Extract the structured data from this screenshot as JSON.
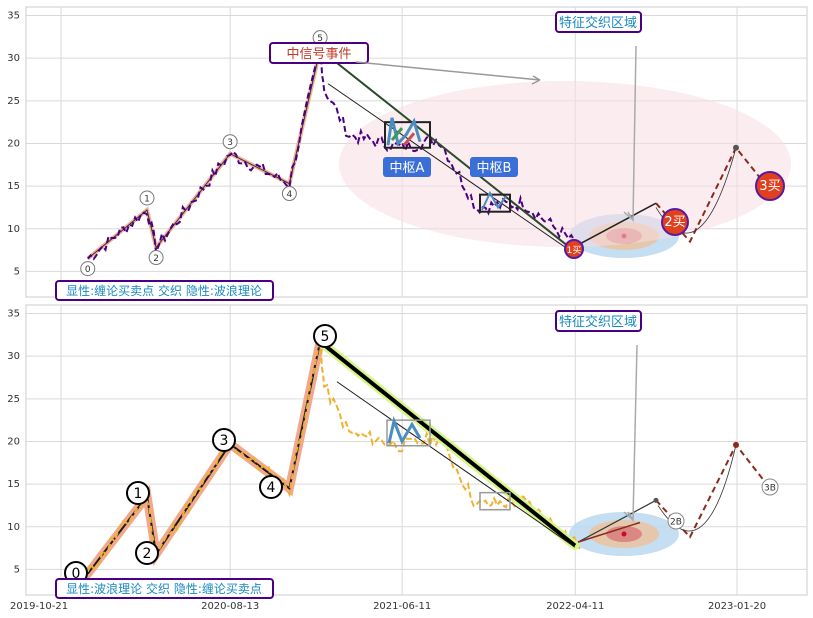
{
  "chart_data": [
    {
      "type": "line",
      "panel": "top",
      "ylim": [
        2,
        36
      ],
      "yticks": [
        5,
        10,
        15,
        20,
        25,
        30,
        35
      ],
      "grid": true,
      "price_series_color": "#4b0082",
      "wave_points": [
        {
          "label": "0",
          "x": "2019-12-07",
          "y": 6.5
        },
        {
          "label": "1",
          "x": "2020-03-20",
          "y": 12.2
        },
        {
          "label": "2",
          "x": "2020-04-05",
          "y": 7.8
        },
        {
          "label": "3",
          "x": "2020-08-13",
          "y": 18.8
        },
        {
          "label": "4",
          "x": "2020-11-25",
          "y": 15.3
        },
        {
          "label": "5",
          "x": "2021-01-18",
          "y": 31.0
        }
      ],
      "annotations": {
        "event_box": "中信号事件",
        "feature_box": "特征交织区域",
        "pivot_a": "中枢A",
        "pivot_b": "中枢B",
        "legend_box": "显性:缠论买卖点 交织 隐性:波浪理论",
        "buy1": "1买",
        "buy2": "2买",
        "buy3": "3买"
      }
    },
    {
      "type": "line",
      "panel": "bottom",
      "ylim": [
        2,
        36
      ],
      "yticks": [
        5,
        10,
        15,
        20,
        25,
        30,
        35
      ],
      "grid": true,
      "price_series_color": "#f0b030",
      "wave_points": [
        {
          "label": "0",
          "x": "2019-12-07",
          "y": 4.5
        },
        {
          "label": "1",
          "x": "2020-03-20",
          "y": 13.6
        },
        {
          "label": "2",
          "x": "2020-04-05",
          "y": 6.8
        },
        {
          "label": "3",
          "x": "2020-08-13",
          "y": 19.7
        },
        {
          "label": "4",
          "x": "2020-11-25",
          "y": 14.5
        },
        {
          "label": "5",
          "x": "2021-01-18",
          "y": 31.7
        }
      ],
      "annotations": {
        "feature_box": "特征交织区域",
        "legend_box": "显性:波浪理论 交织 隐性:缠论买卖点",
        "b2": "2B",
        "b3": "3B"
      }
    }
  ],
  "x_ticks": [
    "2019-10-21",
    "2020-08-13",
    "2021-06-11",
    "2022-04-11",
    "2023-01-20"
  ]
}
